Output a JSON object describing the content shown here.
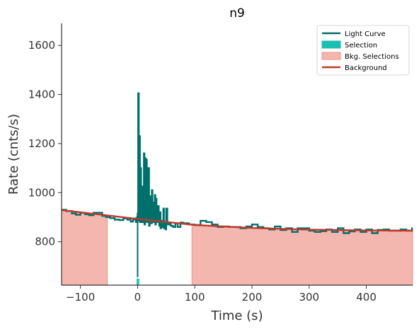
{
  "chart_data": {
    "type": "line",
    "title": "n9",
    "xlabel": "Time (s)",
    "ylabel": "Rate (cnts/s)",
    "xlim": [
      -133,
      481
    ],
    "ylim": [
      623,
      1690
    ],
    "xticks": [
      -100,
      0,
      100,
      200,
      300,
      400
    ],
    "yticks": [
      800,
      1000,
      1200,
      1400,
      1600
    ],
    "xtick_labels": [
      "−100",
      "0",
      "100",
      "200",
      "300",
      "400"
    ],
    "ytick_labels": [
      "800",
      "1000",
      "1200",
      "1400",
      "1600"
    ],
    "grid": false,
    "legend_position": "top-right",
    "legend": [
      {
        "label": "Light Curve",
        "kind": "line",
        "color": "#00706b"
      },
      {
        "label": "Selection",
        "kind": "patch",
        "color": "#1abfb0"
      },
      {
        "label": "Bkg. Selections",
        "kind": "patch",
        "color": "#f4b7b0"
      },
      {
        "label": "Background",
        "kind": "line",
        "color": "#c0392b"
      }
    ],
    "series": [
      {
        "name": "Light Curve",
        "style": "step",
        "color": "#00706b",
        "x": [
          -133,
          -125,
          -115,
          -108,
          -100,
          -92,
          -85,
          -77,
          -70,
          -62,
          -55,
          -48,
          -40,
          -32,
          -25,
          -18,
          -12,
          -8,
          -5,
          -3,
          -1,
          0,
          1,
          2,
          3,
          4,
          5,
          6,
          7,
          8,
          9,
          10,
          11,
          12,
          13,
          14,
          15,
          16,
          17,
          18,
          19,
          20,
          21,
          22,
          23,
          24,
          25,
          26,
          27,
          28,
          29,
          30,
          31,
          32,
          33,
          34,
          35,
          36,
          37,
          38,
          39,
          40,
          41,
          42,
          43,
          44,
          45,
          46,
          47,
          48,
          49,
          50,
          52,
          55,
          58,
          62,
          66,
          70,
          75,
          80,
          90,
          100,
          110,
          120,
          130,
          140,
          150,
          160,
          170,
          180,
          190,
          200,
          210,
          220,
          230,
          240,
          250,
          260,
          270,
          280,
          290,
          300,
          310,
          320,
          330,
          340,
          350,
          360,
          370,
          380,
          390,
          400,
          410,
          420,
          430,
          440,
          450,
          460,
          470,
          480
        ],
        "y": [
          930,
          925,
          915,
          910,
          918,
          912,
          908,
          918,
          918,
          905,
          900,
          896,
          890,
          888,
          895,
          890,
          882,
          890,
          895,
          880,
          900,
          915,
          1405,
          885,
          1230,
          880,
          1100,
          905,
          960,
          880,
          1025,
          900,
          1160,
          870,
          1140,
          905,
          1135,
          880,
          1000,
          915,
          1100,
          865,
          985,
          960,
          935,
          875,
          1010,
          910,
          880,
          960,
          900,
          990,
          870,
          975,
          880,
          880,
          905,
          945,
          880,
          865,
          920,
          855,
          885,
          885,
          880,
          860,
          935,
          855,
          870,
          880,
          850,
          935,
          870,
          875,
          865,
          860,
          875,
          860,
          878,
          875,
          870,
          868,
          885,
          880,
          870,
          860,
          862,
          860,
          860,
          855,
          862,
          870,
          860,
          855,
          850,
          862,
          848,
          855,
          840,
          855,
          855,
          845,
          840,
          843,
          850,
          840,
          855,
          835,
          842,
          850,
          840,
          850,
          835,
          848,
          850,
          845,
          845,
          850,
          845,
          855
        ]
      },
      {
        "name": "Background",
        "style": "line",
        "color": "#c0392b",
        "x": [
          -133,
          0,
          100,
          200,
          300,
          400,
          481
        ],
        "y": [
          929,
          893,
          868,
          856,
          849,
          846,
          845
        ]
      }
    ],
    "selection": {
      "x": [
        -2,
        3
      ],
      "color": "#1abfb0"
    },
    "bkg_selections": [
      {
        "x": [
          -133,
          -53
        ],
        "color": "#f4b7b0"
      },
      {
        "x": [
          95,
          481
        ],
        "color": "#f4b7b0"
      }
    ]
  }
}
